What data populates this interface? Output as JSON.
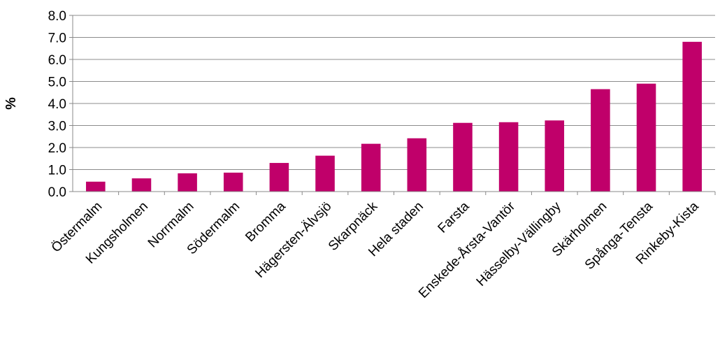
{
  "chart_data": {
    "type": "bar",
    "title": "",
    "xlabel": "",
    "ylabel": "%",
    "ylim": [
      0,
      8
    ],
    "yticks": [
      "0.0",
      "1.0",
      "2.0",
      "3.0",
      "4.0",
      "5.0",
      "6.0",
      "7.0",
      "8.0"
    ],
    "grid": true,
    "categories": [
      "Östermalm",
      "Kungsholmen",
      "Norrmalm",
      "Södermalm",
      "Bromma",
      "Hägersten-Älvsjö",
      "Skarpnäck",
      "Hela staden",
      "Farsta",
      "Enskede-Årsta-Vantör",
      "Hässelby-Vällingby",
      "Skärholmen",
      "Spånga-Tensta",
      "Rinkeby-Kista"
    ],
    "values": [
      0.45,
      0.6,
      0.83,
      0.86,
      1.3,
      1.63,
      2.17,
      2.42,
      3.12,
      3.15,
      3.23,
      4.65,
      4.9,
      6.8
    ],
    "bar_color": "#c0006a"
  }
}
